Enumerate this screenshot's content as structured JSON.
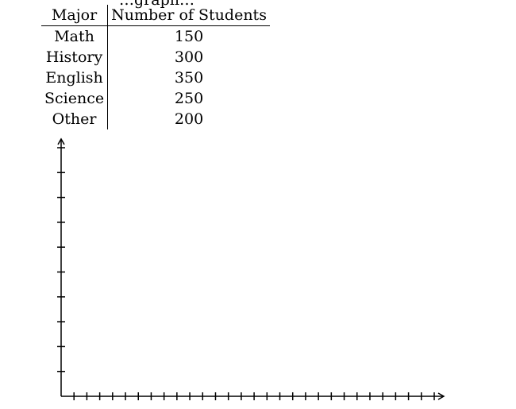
{
  "header_fragment": "…graph…",
  "table": {
    "headers": [
      "Major",
      "Number of Students"
    ],
    "rows": [
      {
        "major": "Math",
        "students": "150"
      },
      {
        "major": "History",
        "students": "300"
      },
      {
        "major": "English",
        "students": "350"
      },
      {
        "major": "Science",
        "students": "250"
      },
      {
        "major": "Other",
        "students": "200"
      }
    ]
  },
  "blank_grid": {
    "y_axis_tick_count": 10,
    "x_axis_tick_count": 29,
    "axis_arrows": true,
    "axis_labels": "none"
  }
}
